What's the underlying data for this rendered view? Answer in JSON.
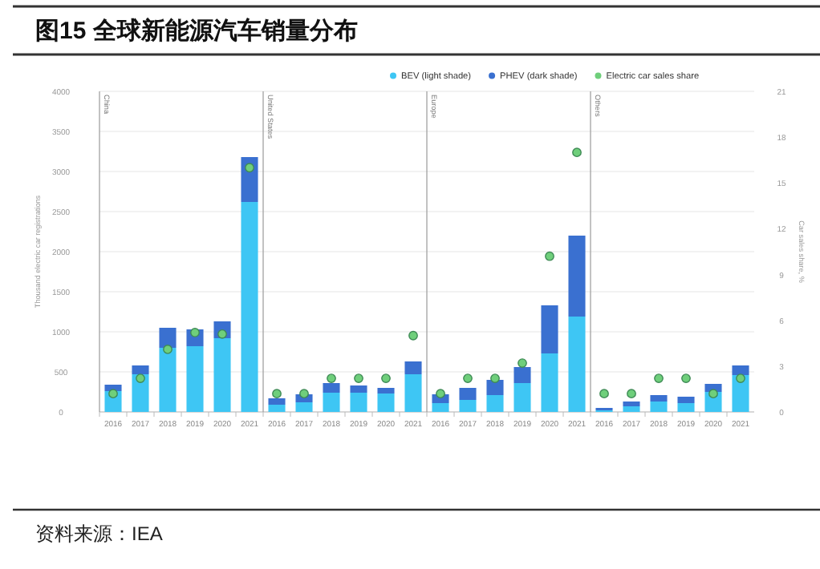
{
  "chart_data": {
    "type": "bar",
    "title": "图15 全球新能源汽车销量分布",
    "ylabel": "Thousand electric car registrations",
    "y2label": "Car sales share, %",
    "categories": [
      "2016",
      "2017",
      "2018",
      "2019",
      "2020",
      "2021",
      "2016",
      "2017",
      "2018",
      "2019",
      "2020",
      "2021",
      "2016",
      "2017",
      "2018",
      "2019",
      "2020",
      "2021",
      "2016",
      "2017",
      "2018",
      "2019",
      "2020",
      "2021"
    ],
    "stacked": true,
    "series": [
      {
        "name": "BEV (light shade)",
        "color": "#3ec6f4",
        "values": [
          260,
          470,
          800,
          820,
          920,
          2620,
          90,
          120,
          240,
          240,
          230,
          470,
          110,
          150,
          210,
          360,
          730,
          1190,
          20,
          70,
          130,
          110,
          250,
          460
        ]
      },
      {
        "name": "PHEV (dark shade)",
        "color": "#3a70d0",
        "values": [
          80,
          110,
          250,
          210,
          210,
          560,
          80,
          100,
          120,
          90,
          70,
          160,
          110,
          150,
          190,
          200,
          600,
          1010,
          30,
          60,
          80,
          80,
          100,
          120
        ]
      },
      {
        "name": "Electric car sales share",
        "type": "scatter",
        "axis": "y2",
        "color": "#6fcf7b",
        "marker": "circle",
        "values": [
          1.2,
          2.2,
          4.1,
          5.2,
          5.1,
          16.0,
          1.2,
          1.2,
          2.2,
          2.2,
          2.2,
          5.0,
          1.2,
          2.2,
          2.2,
          3.2,
          10.2,
          17.0,
          1.2,
          1.2,
          2.2,
          2.2,
          1.2,
          2.2
        ]
      }
    ],
    "ylim": [
      0,
      4000
    ],
    "yticks": [
      0,
      500,
      1000,
      1500,
      2000,
      2500,
      3000,
      3500,
      4000
    ],
    "y2lim": [
      0,
      21
    ],
    "y2ticks": [
      0,
      3,
      6,
      9,
      12,
      15,
      18,
      21
    ],
    "grid": "y",
    "legend": "top",
    "annotations": [
      "China",
      "United States",
      "Europe",
      "Others",
      "资料来源：IEA"
    ]
  }
}
